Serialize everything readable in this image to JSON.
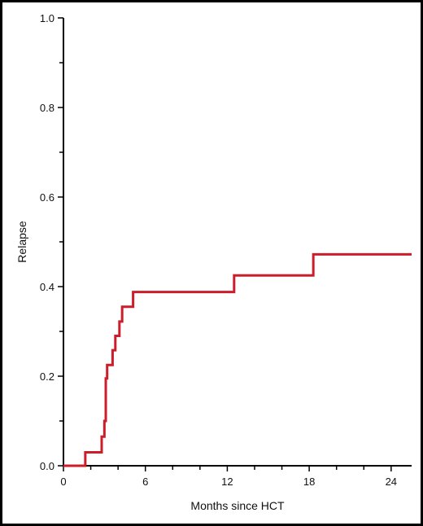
{
  "chart_data": {
    "type": "line",
    "xlabel": "Months since HCT",
    "ylabel": "Relapse",
    "xlim": [
      0,
      25.5
    ],
    "ylim": [
      0,
      1.0
    ],
    "xticks": [
      0,
      6,
      12,
      18,
      24
    ],
    "xtick_labels": [
      "0",
      "6",
      "12",
      "18",
      "24"
    ],
    "yticks": [
      0.0,
      0.2,
      0.4,
      0.6,
      0.8,
      1.0
    ],
    "ytick_labels": [
      "0.0",
      "0.2",
      "0.4",
      "0.6",
      "0.8",
      "1.0"
    ],
    "grid": false,
    "line_style": "step",
    "series": [
      {
        "color": "#cc1d2a",
        "x": [
          0,
          1.6,
          2.8,
          3.0,
          3.1,
          3.2,
          3.6,
          3.8,
          4.1,
          4.3,
          4.4,
          5.1,
          12.5,
          18.3,
          25.5
        ],
        "y": [
          0,
          0.03,
          0.065,
          0.1,
          0.195,
          0.225,
          0.258,
          0.29,
          0.322,
          0.355,
          0.355,
          0.388,
          0.425,
          0.472,
          0.472
        ]
      }
    ]
  }
}
